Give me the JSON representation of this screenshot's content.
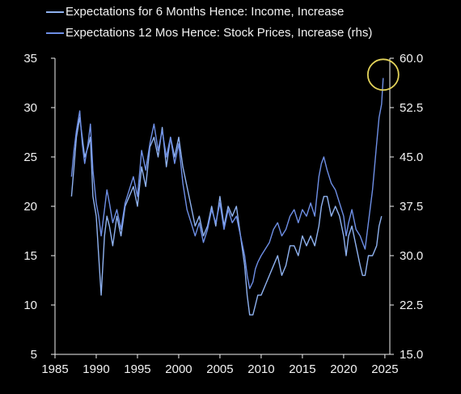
{
  "chart_data": {
    "type": "line",
    "title": "",
    "xlabel": "",
    "ylabel": "",
    "y2label": "",
    "x_ticks": [
      "1985",
      "1990",
      "1995",
      "2000",
      "2005",
      "2010",
      "2015",
      "2020",
      "2025"
    ],
    "x_range": [
      1985,
      2025.6
    ],
    "y_left_ticks": [
      "5",
      "10",
      "15",
      "20",
      "25",
      "30",
      "35"
    ],
    "y_left_range": [
      5,
      35
    ],
    "y_right_ticks": [
      "15.0",
      "22.5",
      "30.0",
      "37.5",
      "45.0",
      "52.5",
      "60.0"
    ],
    "y_right_range": [
      15,
      60
    ],
    "grid": false,
    "legend_position": "top-left",
    "highlight": {
      "shape": "circle",
      "color": "#e3d35a",
      "at_x": 2024.8,
      "at_y_right": 57.5
    },
    "series": [
      {
        "name": "Expectations for 6 Months Hence: Income, Increase",
        "axis": "left",
        "color": "#8fb2f0",
        "x": [
          1987,
          1987.3,
          1987.6,
          1988,
          1988.3,
          1988.6,
          1989,
          1989.3,
          1989.6,
          1990,
          1990.3,
          1990.6,
          1991,
          1991.3,
          1991.6,
          1992,
          1992.5,
          1993,
          1993.5,
          1994,
          1994.5,
          1995,
          1995.5,
          1996,
          1996.5,
          1997,
          1997.5,
          1998,
          1998.5,
          1999,
          1999.5,
          2000,
          2000.5,
          2001,
          2001.5,
          2002,
          2002.5,
          2003,
          2003.5,
          2004,
          2004.5,
          2005,
          2005.5,
          2006,
          2006.5,
          2007,
          2007.5,
          2008,
          2008.3,
          2008.6,
          2009,
          2009.3,
          2009.6,
          2010,
          2010.5,
          2011,
          2011.5,
          2012,
          2012.5,
          2013,
          2013.5,
          2014,
          2014.5,
          2015,
          2015.5,
          2016,
          2016.5,
          2017,
          2017.3,
          2017.6,
          2018,
          2018.5,
          2019,
          2019.5,
          2020,
          2020.3,
          2020.6,
          2021,
          2021.5,
          2022,
          2022.3,
          2022.6,
          2023,
          2023.5,
          2024,
          2024.3,
          2024.6
        ],
        "values": [
          21,
          24,
          27,
          29,
          27,
          25,
          26,
          27,
          21,
          19,
          15,
          11,
          17,
          19,
          18,
          16,
          19,
          17,
          20,
          21,
          22,
          20,
          24,
          22,
          26,
          27,
          25,
          28,
          24,
          27,
          25,
          27,
          24,
          22,
          20,
          18,
          19,
          17,
          18,
          20,
          18,
          21,
          18,
          20,
          19,
          20,
          17,
          14,
          11,
          9,
          9,
          10,
          11,
          11,
          12,
          13,
          14,
          15,
          13,
          14,
          16,
          16,
          15,
          17,
          16,
          17,
          16,
          18,
          20,
          21,
          21,
          19,
          20,
          19,
          17,
          15,
          17,
          18,
          16,
          14,
          13,
          13,
          15,
          15,
          16,
          18,
          19
        ]
      },
      {
        "name": "Expectations 12 Mos Hence: Stock Prices, Increase (rhs)",
        "axis": "right",
        "color": "#6e8fe6",
        "x": [
          1987,
          1987.3,
          1987.6,
          1988,
          1988.3,
          1988.6,
          1989,
          1989.3,
          1989.6,
          1990,
          1990.3,
          1990.6,
          1991,
          1991.3,
          1991.6,
          1992,
          1992.5,
          1993,
          1993.5,
          1994,
          1994.5,
          1995,
          1995.5,
          1996,
          1996.5,
          1997,
          1997.5,
          1998,
          1998.5,
          1999,
          1999.5,
          2000,
          2000.5,
          2001,
          2001.5,
          2002,
          2002.5,
          2003,
          2003.5,
          2004,
          2004.5,
          2005,
          2005.5,
          2006,
          2006.5,
          2007,
          2007.5,
          2008,
          2008.3,
          2008.6,
          2009,
          2009.3,
          2009.6,
          2010,
          2010.5,
          2011,
          2011.5,
          2012,
          2012.5,
          2013,
          2013.5,
          2014,
          2014.5,
          2015,
          2015.5,
          2016,
          2016.5,
          2017,
          2017.3,
          2017.6,
          2018,
          2018.5,
          2019,
          2019.5,
          2020,
          2020.3,
          2020.6,
          2021,
          2021.5,
          2022,
          2022.3,
          2022.6,
          2023,
          2023.5,
          2024,
          2024.3,
          2024.6,
          2024.8
        ],
        "values": [
          42,
          46,
          49,
          52,
          47,
          44,
          47,
          50,
          43,
          38,
          36,
          33,
          37,
          40,
          38,
          35,
          37,
          34,
          38,
          40,
          42,
          39,
          46,
          43,
          47,
          50,
          46,
          49,
          45,
          48,
          44,
          47,
          41,
          37,
          35,
          33,
          35,
          32,
          34,
          37,
          35,
          38,
          34,
          37,
          35,
          36,
          33,
          30,
          27,
          25,
          26,
          28,
          29,
          30,
          31,
          32,
          34,
          35,
          33,
          34,
          36,
          37,
          35,
          37,
          36,
          38,
          36,
          42,
          44,
          45,
          43,
          41,
          40,
          38,
          36,
          33,
          35,
          37,
          34,
          33,
          32,
          31,
          35,
          40,
          47,
          51,
          53,
          57
        ]
      }
    ]
  }
}
